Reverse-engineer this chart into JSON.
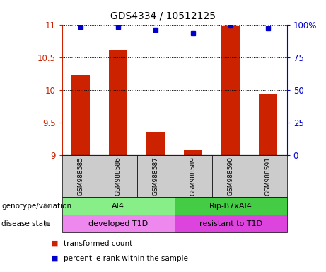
{
  "title": "GDS4334 / 10512125",
  "samples": [
    "GSM988585",
    "GSM988586",
    "GSM988587",
    "GSM988589",
    "GSM988590",
    "GSM988591"
  ],
  "bar_values": [
    10.22,
    10.62,
    9.36,
    9.07,
    10.98,
    9.93
  ],
  "percentile_values": [
    98,
    98,
    96,
    93,
    99,
    97
  ],
  "ylim_left": [
    9,
    11
  ],
  "ylim_right": [
    0,
    100
  ],
  "yticks_left": [
    9,
    9.5,
    10,
    10.5,
    11
  ],
  "yticks_right": [
    0,
    25,
    50,
    75,
    100
  ],
  "ytick_labels_right": [
    "0",
    "25",
    "50",
    "75",
    "100%"
  ],
  "bar_color": "#cc2200",
  "dot_color": "#0000cc",
  "bar_width": 0.5,
  "genotype_groups": [
    {
      "label": "AI4",
      "samples": [
        0,
        1,
        2
      ],
      "color": "#88ee88"
    },
    {
      "label": "Rip-B7xAI4",
      "samples": [
        3,
        4,
        5
      ],
      "color": "#44cc44"
    }
  ],
  "disease_groups": [
    {
      "label": "developed T1D",
      "samples": [
        0,
        1,
        2
      ],
      "color": "#ee88ee"
    },
    {
      "label": "resistant to T1D",
      "samples": [
        3,
        4,
        5
      ],
      "color": "#dd44dd"
    }
  ],
  "genotype_label": "genotype/variation",
  "disease_label": "disease state",
  "legend_items": [
    {
      "label": "transformed count",
      "color": "#cc2200"
    },
    {
      "label": "percentile rank within the sample",
      "color": "#0000cc"
    }
  ],
  "sample_box_color": "#cccccc",
  "left_axis_color": "#cc2200",
  "right_axis_color": "#0000cc"
}
